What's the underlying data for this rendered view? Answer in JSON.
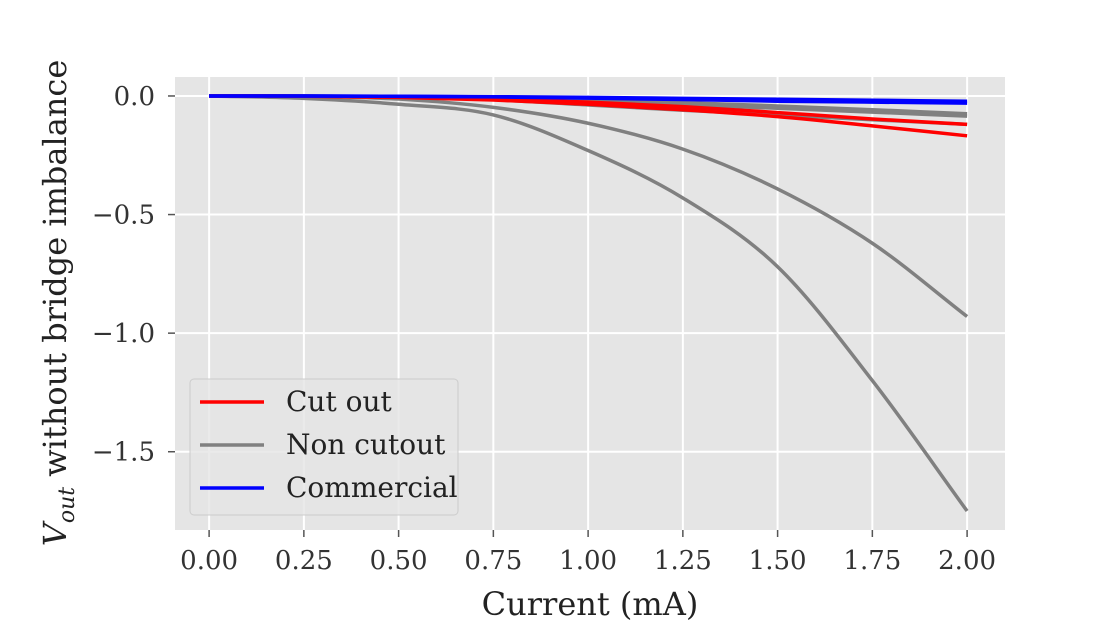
{
  "chart_data": {
    "type": "line",
    "title": "",
    "xlabel": "Current (mA)",
    "ylabel": {
      "var": "V",
      "sub": "out",
      "text": " without bridge imbalance"
    },
    "xlim": [
      -0.09,
      2.1
    ],
    "ylim": [
      -1.83,
      0.08
    ],
    "xticks": [
      0.0,
      0.25,
      0.5,
      0.75,
      1.0,
      1.25,
      1.5,
      1.75,
      2.0
    ],
    "xtick_labels": [
      "0.00",
      "0.25",
      "0.50",
      "0.75",
      "1.00",
      "1.25",
      "1.50",
      "1.75",
      "2.00"
    ],
    "yticks": [
      0.0,
      -0.5,
      -1.0,
      -1.5
    ],
    "ytick_labels": [
      "0.0",
      "−0.5",
      "−1.0",
      "−1.5"
    ],
    "grid": true,
    "background": "#e5e5e5",
    "legend_position": "lower-left",
    "legend": [
      {
        "label": "Cut out",
        "color": "#ff0000"
      },
      {
        "label": "Non cutout",
        "color": "#808080"
      },
      {
        "label": "Commercial",
        "color": "#0000ff"
      }
    ],
    "series": [
      {
        "group": "Non cutout",
        "color": "#808080",
        "x": [
          0,
          0.25,
          0.5,
          0.75,
          1.0,
          1.25,
          1.5,
          1.75,
          2.0
        ],
        "y": [
          0,
          -0.001,
          -0.013,
          -0.048,
          -0.115,
          -0.224,
          -0.392,
          -0.621,
          -0.93
        ]
      },
      {
        "group": "Non cutout",
        "color": "#808080",
        "x": [
          0,
          0.25,
          0.5,
          0.75,
          1.0,
          1.25,
          1.5,
          1.75,
          2.0
        ],
        "y": [
          0,
          -0.01,
          -0.035,
          -0.08,
          -0.23,
          -0.43,
          -0.72,
          -1.2,
          -1.75
        ]
      },
      {
        "group": "Non cutout",
        "color": "#808080",
        "x": [
          0,
          0.25,
          0.5,
          0.75,
          1.0,
          1.25,
          1.5,
          1.75,
          2.0
        ],
        "y": [
          0,
          -0.001,
          -0.005,
          -0.016,
          -0.038,
          -0.06,
          -0.08,
          -0.1,
          -0.12
        ]
      },
      {
        "group": "Non cutout",
        "color": "#808080",
        "x": [
          0,
          0.25,
          0.5,
          0.75,
          1.0,
          1.25,
          1.5,
          1.75,
          2.0
        ],
        "y": [
          0,
          -0.0003,
          -0.003,
          -0.01,
          -0.022,
          -0.036,
          -0.052,
          -0.068,
          -0.085
        ]
      },
      {
        "group": "Non cutout",
        "color": "#808080",
        "x": [
          0,
          0.25,
          0.5,
          0.75,
          1.0,
          1.25,
          1.5,
          1.75,
          2.0
        ],
        "y": [
          0,
          -0.0002,
          -0.002,
          -0.007,
          -0.016,
          -0.028,
          -0.042,
          -0.058,
          -0.075
        ]
      },
      {
        "group": "Cut out",
        "color": "#ff0000",
        "x": [
          0,
          0.25,
          0.5,
          0.75,
          1.0,
          1.25,
          1.5,
          1.75,
          2.0
        ],
        "y": [
          0,
          -0.001,
          -0.006,
          -0.017,
          -0.035,
          -0.058,
          -0.087,
          -0.126,
          -0.168
        ]
      },
      {
        "group": "Cut out",
        "color": "#ff0000",
        "x": [
          0,
          0.25,
          0.5,
          0.75,
          1.0,
          1.25,
          1.5,
          1.75,
          2.0
        ],
        "y": [
          0,
          -0.0007,
          -0.004,
          -0.012,
          -0.026,
          -0.045,
          -0.07,
          -0.097,
          -0.12
        ]
      },
      {
        "group": "Commercial",
        "color": "#0000ff",
        "x": [
          0,
          0.25,
          0.5,
          0.75,
          1.0,
          1.25,
          1.5,
          1.75,
          2.0
        ],
        "y": [
          0,
          -0.0002,
          -0.0015,
          -0.004,
          -0.009,
          -0.015,
          -0.022,
          -0.026,
          -0.03
        ]
      },
      {
        "group": "Commercial",
        "color": "#0000ff",
        "x": [
          0,
          0.25,
          0.5,
          0.75,
          1.0,
          1.25,
          1.5,
          1.75,
          2.0
        ],
        "y": [
          0,
          -0.0002,
          -0.0012,
          -0.003,
          -0.006,
          -0.01,
          -0.014,
          -0.018,
          -0.022
        ]
      }
    ]
  }
}
